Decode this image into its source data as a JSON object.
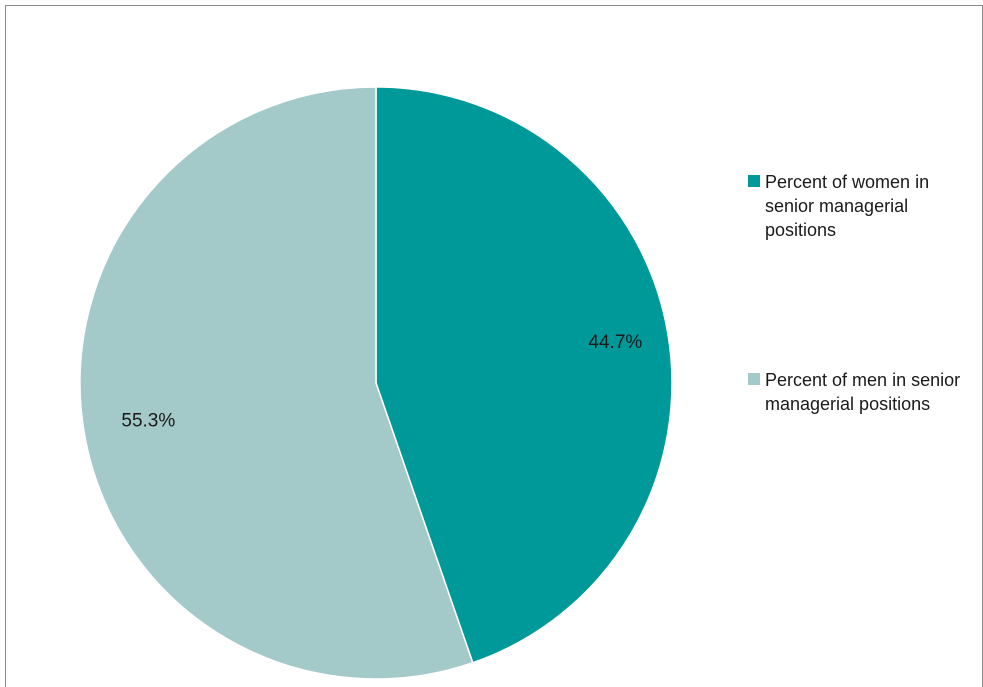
{
  "chart_data": {
    "type": "pie",
    "categories": [
      "Percent of women in senior managerial positions",
      "Percent of men in senior managerial positions"
    ],
    "values": [
      44.7,
      55.3
    ],
    "data_labels": [
      "44.7%",
      "55.3%"
    ],
    "colors": [
      "#009999",
      "#a3c9c9"
    ],
    "legend": {
      "position": "right",
      "entries": [
        {
          "name": "Percent of women in senior managerial positions",
          "color": "#009999"
        },
        {
          "name": "Percent of men in senior managerial positions",
          "color": "#a3c9c9"
        }
      ]
    }
  }
}
